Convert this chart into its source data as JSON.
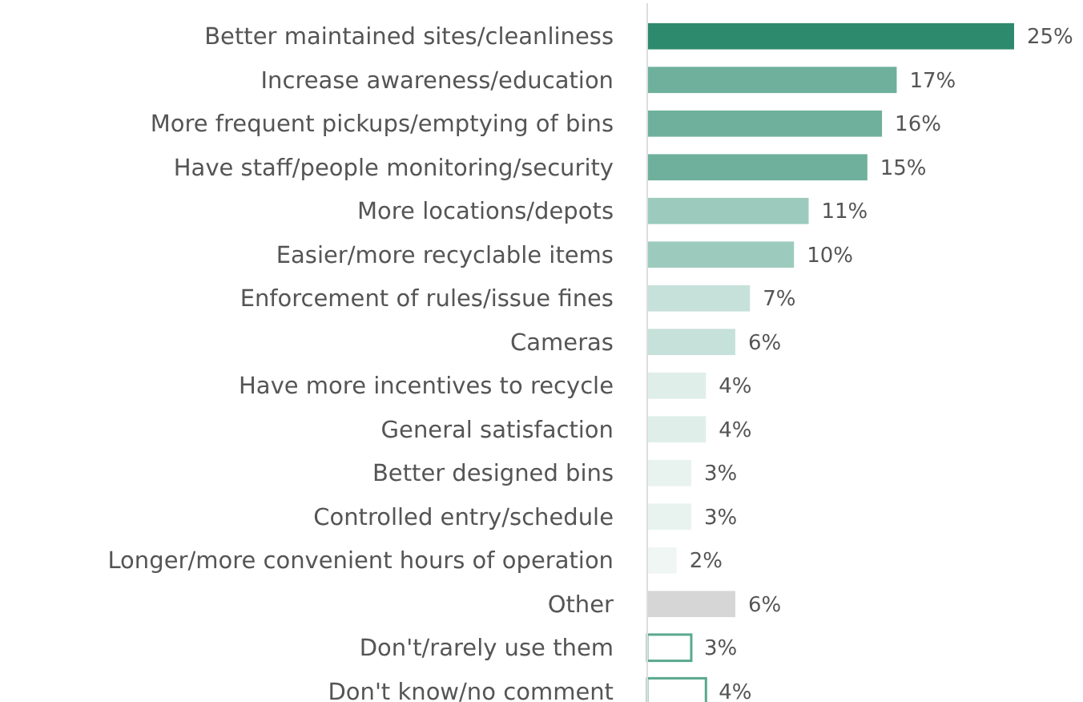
{
  "chart_data": {
    "type": "bar",
    "orientation": "horizontal",
    "relative": false,
    "data_labels": true,
    "categories": [
      "Better maintained sites/cleanliness",
      "Increase awareness/education",
      "More frequent pickups/emptying of bins",
      "Have staff/people monitoring/security",
      "More locations/depots",
      "Easier/more recyclable items",
      "Enforcement of rules/issue fines",
      "Cameras",
      "Have more incentives to recycle",
      "General satisfaction",
      "Better designed bins",
      "Controlled entry/schedule",
      "Longer/more convenient hours of operation",
      "Other",
      "Don't/rarely use them",
      "Don't know/no comment"
    ],
    "values": [
      25,
      17,
      16,
      15,
      11,
      10,
      7,
      6,
      4,
      4,
      3,
      3,
      2,
      6,
      3,
      4
    ],
    "value_labels": [
      "25%",
      "17%",
      "16%",
      "15%",
      "11%",
      "10%",
      "7%",
      "6%",
      "4%",
      "4%",
      "3%",
      "3%",
      "2%",
      "6%",
      "3%",
      "4%"
    ],
    "colors": [
      "#2e8a6c",
      "#6eb09c",
      "#6eb09c",
      "#6eb09c",
      "#9ccbbd",
      "#9ccbbd",
      "#c6e1d9",
      "#c6e1d9",
      "#dfeee9",
      "#dfeee9",
      "#e8f3ef",
      "#e8f3ef",
      "#eff6f4",
      "#d6d6d6",
      "#ffffff",
      "#ffffff"
    ]
  }
}
